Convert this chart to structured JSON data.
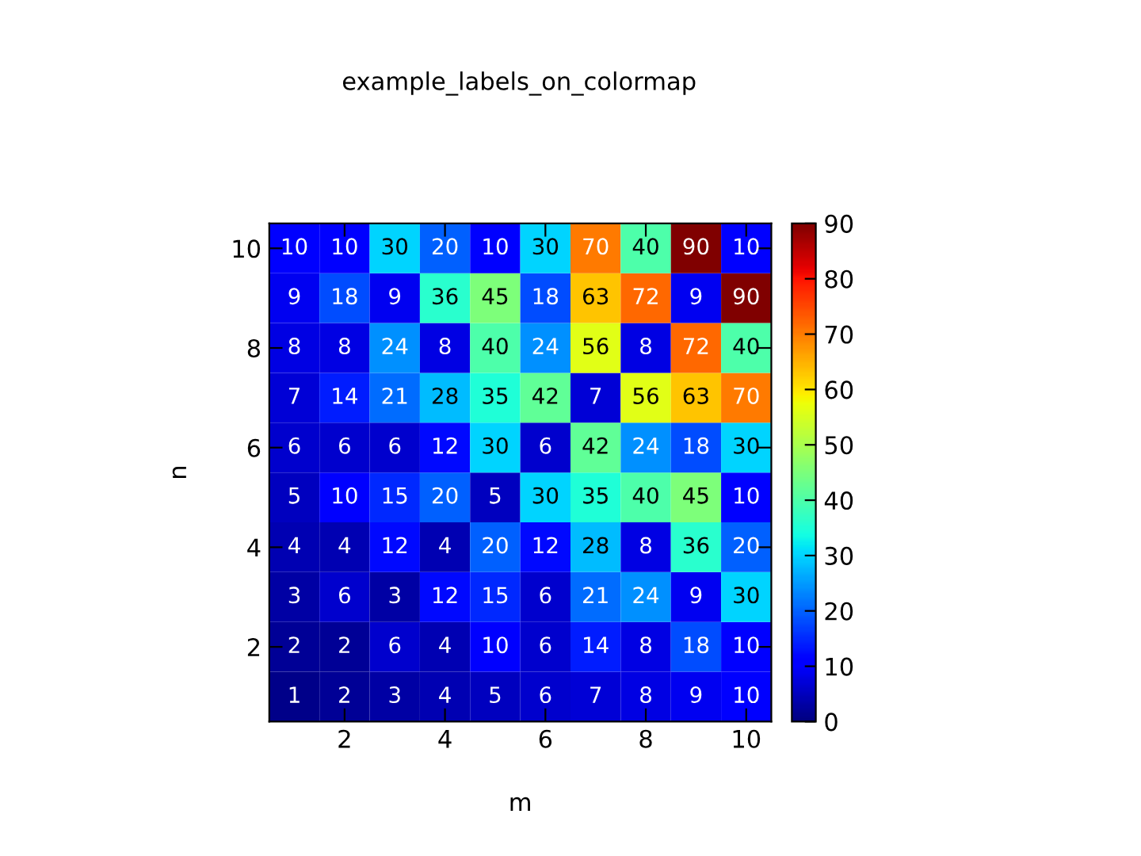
{
  "chart_data": {
    "type": "heatmap",
    "title": "example_labels_on_colormap",
    "xlabel": "m",
    "ylabel": "n",
    "categories": [
      null,
      "2",
      null,
      "4",
      null,
      "6",
      null,
      "8",
      null,
      "10"
    ],
    "y_categories": [
      "10",
      null,
      "8",
      null,
      "6",
      null,
      "4",
      null,
      "2",
      null
    ],
    "cells": [
      [
        10,
        10,
        30,
        20,
        10,
        30,
        70,
        40,
        90,
        10
      ],
      [
        9,
        18,
        9,
        36,
        45,
        18,
        63,
        72,
        9,
        90
      ],
      [
        8,
        8,
        24,
        8,
        40,
        24,
        56,
        8,
        72,
        40
      ],
      [
        7,
        14,
        21,
        28,
        35,
        42,
        7,
        56,
        63,
        70
      ],
      [
        6,
        6,
        6,
        12,
        30,
        6,
        42,
        24,
        18,
        30
      ],
      [
        5,
        10,
        15,
        20,
        5,
        30,
        35,
        40,
        45,
        10
      ],
      [
        4,
        4,
        12,
        4,
        20,
        12,
        28,
        8,
        36,
        20
      ],
      [
        3,
        6,
        3,
        12,
        15,
        6,
        21,
        24,
        9,
        30
      ],
      [
        2,
        2,
        6,
        4,
        10,
        6,
        14,
        8,
        18,
        10
      ],
      [
        1,
        2,
        3,
        4,
        5,
        6,
        7,
        8,
        9,
        10
      ]
    ],
    "data_labels": true,
    "clim": [
      0,
      90
    ],
    "cticks": [
      0,
      10,
      20,
      30,
      40,
      50,
      60,
      70,
      80,
      90
    ]
  }
}
